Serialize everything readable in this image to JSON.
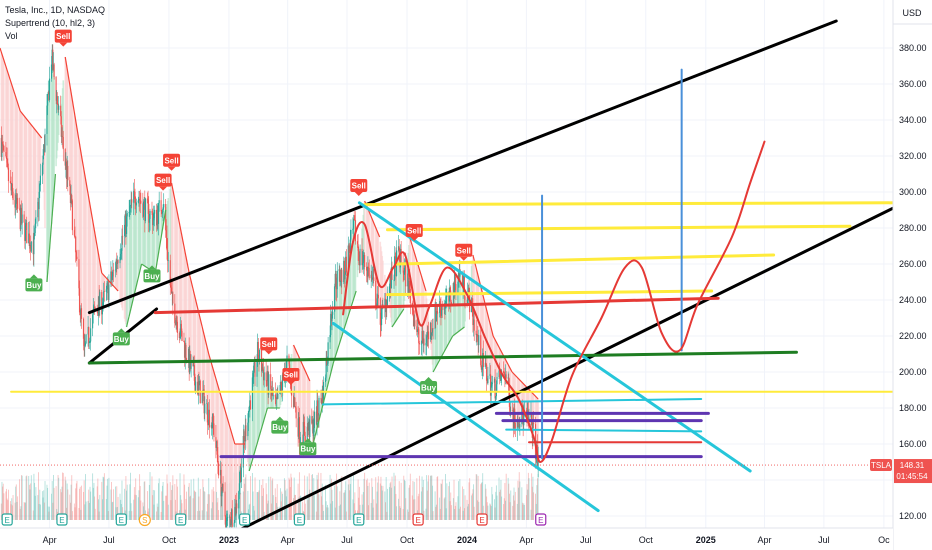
{
  "legend": {
    "symbol": "Tesla, Inc., 1D, NASDAQ",
    "indicator": "Supertrend (10, hl2, 3)",
    "volume": "Vol"
  },
  "chart_data": {
    "type": "candlestick",
    "currency": "USD",
    "ylim": [
      110,
      395
    ],
    "xlim": [
      "2022-01-15",
      "2025-10-15"
    ],
    "y_ticks": [
      120,
      140,
      160,
      180,
      200,
      220,
      240,
      260,
      280,
      300,
      320,
      340,
      360,
      380
    ],
    "x_ticks": [
      {
        "date": "2022-04-01",
        "label": "Apr"
      },
      {
        "date": "2022-07-01",
        "label": "Jul"
      },
      {
        "date": "2022-10-01",
        "label": "Oct"
      },
      {
        "date": "2023-01-01",
        "label": "2023",
        "year": true
      },
      {
        "date": "2023-04-01",
        "label": "Apr"
      },
      {
        "date": "2023-07-01",
        "label": "Jul"
      },
      {
        "date": "2023-10-01",
        "label": "Oct"
      },
      {
        "date": "2024-01-01",
        "label": "2024",
        "year": true
      },
      {
        "date": "2024-04-01",
        "label": "Apr"
      },
      {
        "date": "2024-07-01",
        "label": "Jul"
      },
      {
        "date": "2024-10-01",
        "label": "Oct"
      },
      {
        "date": "2025-01-01",
        "label": "2025",
        "year": true
      },
      {
        "date": "2025-04-01",
        "label": "Apr"
      },
      {
        "date": "2025-07-01",
        "label": "Jul"
      },
      {
        "date": "2025-10-01",
        "label": "Oc"
      }
    ],
    "last_price": {
      "symbol": "TSLA",
      "value": "148.31",
      "countdown": "01:45:54",
      "y": 148.31
    },
    "approx_close": [
      [
        "2022-01-15",
        330
      ],
      [
        "2022-02-01",
        300
      ],
      [
        "2022-02-20",
        280
      ],
      [
        "2022-03-08",
        270
      ],
      [
        "2022-03-25",
        330
      ],
      [
        "2022-04-04",
        375
      ],
      [
        "2022-04-20",
        330
      ],
      [
        "2022-05-05",
        290
      ],
      [
        "2022-05-24",
        210
      ],
      [
        "2022-06-10",
        235
      ],
      [
        "2022-06-24",
        240
      ],
      [
        "2022-07-08",
        255
      ],
      [
        "2022-07-25",
        280
      ],
      [
        "2022-08-12",
        300
      ],
      [
        "2022-08-26",
        290
      ],
      [
        "2022-09-10",
        285
      ],
      [
        "2022-09-22",
        295
      ],
      [
        "2022-10-05",
        240
      ],
      [
        "2022-10-20",
        220
      ],
      [
        "2022-11-05",
        200
      ],
      [
        "2022-11-22",
        185
      ],
      [
        "2022-12-08",
        170
      ],
      [
        "2022-12-28",
        115
      ],
      [
        "2023-01-12",
        125
      ],
      [
        "2023-01-27",
        170
      ],
      [
        "2023-02-14",
        210
      ],
      [
        "2023-02-28",
        195
      ],
      [
        "2023-03-15",
        180
      ],
      [
        "2023-03-31",
        205
      ],
      [
        "2023-04-20",
        165
      ],
      [
        "2023-05-10",
        170
      ],
      [
        "2023-05-26",
        190
      ],
      [
        "2023-06-12",
        250
      ],
      [
        "2023-06-26",
        255
      ],
      [
        "2023-07-12",
        280
      ],
      [
        "2023-07-20",
        265
      ],
      [
        "2023-08-05",
        255
      ],
      [
        "2023-08-22",
        230
      ],
      [
        "2023-09-06",
        250
      ],
      [
        "2023-09-18",
        265
      ],
      [
        "2023-10-02",
        250
      ],
      [
        "2023-10-20",
        215
      ],
      [
        "2023-11-02",
        220
      ],
      [
        "2023-11-16",
        235
      ],
      [
        "2023-12-05",
        240
      ],
      [
        "2023-12-20",
        255
      ],
      [
        "2024-01-05",
        240
      ],
      [
        "2024-01-24",
        205
      ],
      [
        "2024-02-10",
        190
      ],
      [
        "2024-02-28",
        200
      ],
      [
        "2024-03-12",
        175
      ],
      [
        "2024-03-28",
        175
      ],
      [
        "2024-04-10",
        170
      ],
      [
        "2024-04-19",
        148
      ]
    ],
    "supertrend": [
      {
        "date": "2022-01-15",
        "value": 380,
        "trend": "down"
      },
      {
        "date": "2022-02-15",
        "value": 345,
        "trend": "down"
      },
      {
        "date": "2022-03-20",
        "value": 330,
        "trend": "down"
      },
      {
        "date": "2022-03-28",
        "value": 250,
        "trend": "up"
      },
      {
        "date": "2022-04-10",
        "value": 310,
        "trend": "up"
      },
      {
        "date": "2022-04-25",
        "value": 375,
        "trend": "down"
      },
      {
        "date": "2022-05-20",
        "value": 320,
        "trend": "down"
      },
      {
        "date": "2022-06-20",
        "value": 255,
        "trend": "down"
      },
      {
        "date": "2022-07-15",
        "value": 245,
        "trend": "down"
      },
      {
        "date": "2022-07-28",
        "value": 225,
        "trend": "up"
      },
      {
        "date": "2022-08-20",
        "value": 260,
        "trend": "up"
      },
      {
        "date": "2022-09-10",
        "value": 255,
        "trend": "up"
      },
      {
        "date": "2022-09-26",
        "value": 290,
        "trend": "up"
      },
      {
        "date": "2022-10-05",
        "value": 305,
        "trend": "down"
      },
      {
        "date": "2022-11-01",
        "value": 255,
        "trend": "down"
      },
      {
        "date": "2022-12-01",
        "value": 210,
        "trend": "down"
      },
      {
        "date": "2023-01-10",
        "value": 160,
        "trend": "down"
      },
      {
        "date": "2023-01-26",
        "value": 160,
        "trend": "down"
      },
      {
        "date": "2023-02-01",
        "value": 145,
        "trend": "up"
      },
      {
        "date": "2023-03-01",
        "value": 180,
        "trend": "up"
      },
      {
        "date": "2023-03-20",
        "value": 180,
        "trend": "up"
      },
      {
        "date": "2023-04-10",
        "value": 215,
        "trend": "down"
      },
      {
        "date": "2023-05-05",
        "value": 195,
        "trend": "down"
      },
      {
        "date": "2023-05-10",
        "value": 160,
        "trend": "up"
      },
      {
        "date": "2023-06-10",
        "value": 205,
        "trend": "up"
      },
      {
        "date": "2023-07-15",
        "value": 245,
        "trend": "up"
      },
      {
        "date": "2023-07-28",
        "value": 295,
        "trend": "down"
      },
      {
        "date": "2023-08-20",
        "value": 275,
        "trend": "down"
      },
      {
        "date": "2023-09-08",
        "value": 225,
        "trend": "up"
      },
      {
        "date": "2023-09-26",
        "value": 235,
        "trend": "up"
      },
      {
        "date": "2023-10-05",
        "value": 275,
        "trend": "down"
      },
      {
        "date": "2023-10-30",
        "value": 245,
        "trend": "down"
      },
      {
        "date": "2023-11-10",
        "value": 200,
        "trend": "up"
      },
      {
        "date": "2023-12-10",
        "value": 220,
        "trend": "up"
      },
      {
        "date": "2023-12-28",
        "value": 225,
        "trend": "up"
      },
      {
        "date": "2024-01-10",
        "value": 265,
        "trend": "down"
      },
      {
        "date": "2024-02-10",
        "value": 220,
        "trend": "down"
      },
      {
        "date": "2024-03-10",
        "value": 200,
        "trend": "down"
      },
      {
        "date": "2024-04-19",
        "value": 185,
        "trend": "down"
      }
    ],
    "signals": [
      {
        "type": "Sell",
        "date": "2022-04-22",
        "y": 383
      },
      {
        "type": "Buy",
        "date": "2022-03-08",
        "y": 252
      },
      {
        "type": "Buy",
        "date": "2022-07-20",
        "y": 222
      },
      {
        "type": "Sell",
        "date": "2022-09-22",
        "y": 303
      },
      {
        "type": "Sell",
        "date": "2022-10-05",
        "y": 314
      },
      {
        "type": "Buy",
        "date": "2022-09-05",
        "y": 257
      },
      {
        "type": "Sell",
        "date": "2023-03-03",
        "y": 212
      },
      {
        "type": "Sell",
        "date": "2023-04-06",
        "y": 195
      },
      {
        "type": "Buy",
        "date": "2023-03-20",
        "y": 173
      },
      {
        "type": "Buy",
        "date": "2023-05-02",
        "y": 161
      },
      {
        "type": "Sell",
        "date": "2023-07-19",
        "y": 300
      },
      {
        "type": "Sell",
        "date": "2023-10-12",
        "y": 275
      },
      {
        "type": "Sell",
        "date": "2023-12-27",
        "y": 264
      },
      {
        "type": "Buy",
        "date": "2023-11-03",
        "y": 195
      }
    ],
    "earnings_markers": [
      "2022-01-26",
      "2022-04-20",
      "2022-07-20",
      "2022-10-19",
      "2023-01-25",
      "2023-04-19",
      "2023-07-19",
      "2023-10-18",
      "2024-01-24",
      "2024-04-23"
    ],
    "dividend_marker": {
      "date": "2022-08-25",
      "label": "S"
    },
    "drawings": [
      {
        "name": "upper-channel-line",
        "color": "#000000",
        "width": 3,
        "points": [
          [
            "2022-06-01",
            233
          ],
          [
            "2025-07-20",
            395
          ]
        ]
      },
      {
        "name": "lower-channel-line",
        "color": "#000000",
        "width": 3,
        "points": [
          [
            "2023-01-10",
            111
          ],
          [
            "2025-10-15",
            291
          ]
        ]
      },
      {
        "name": "base-trendline",
        "color": "#000000",
        "width": 3,
        "points": [
          [
            "2022-06-01",
            205
          ],
          [
            "2022-09-12",
            235
          ]
        ]
      },
      {
        "name": "green-support-line",
        "color": "#1e7d22",
        "width": 3,
        "points": [
          [
            "2022-06-01",
            205
          ],
          [
            "2025-05-20",
            211
          ]
        ]
      },
      {
        "name": "red-resistance-line",
        "color": "#e53935",
        "width": 3,
        "points": [
          [
            "2022-09-10",
            233
          ],
          [
            "2025-01-20",
            241
          ]
        ]
      },
      {
        "name": "yellow-line-1",
        "color": "#ffeb3b",
        "width": 2,
        "points": [
          [
            "2022-02-01",
            189
          ],
          [
            "2025-10-15",
            189
          ]
        ]
      },
      {
        "name": "yellow-line-2",
        "color": "#ffeb3b",
        "width": 3,
        "points": [
          [
            "2023-07-28",
            293
          ],
          [
            "2025-10-15",
            294
          ]
        ]
      },
      {
        "name": "yellow-line-3",
        "color": "#ffeb3b",
        "width": 3,
        "points": [
          [
            "2023-09-01",
            279
          ],
          [
            "2025-08-10",
            281
          ]
        ]
      },
      {
        "name": "yellow-line-4",
        "color": "#ffeb3b",
        "width": 3,
        "points": [
          [
            "2023-09-15",
            260
          ],
          [
            "2025-04-15",
            265
          ]
        ]
      },
      {
        "name": "yellow-line-5",
        "color": "#ffeb3b",
        "width": 3,
        "points": [
          [
            "2023-09-01",
            243
          ],
          [
            "2025-01-10",
            245
          ]
        ]
      },
      {
        "name": "cyan-channel-upper",
        "color": "#26c6da",
        "width": 3,
        "points": [
          [
            "2023-07-20",
            294
          ],
          [
            "2025-03-10",
            145
          ]
        ]
      },
      {
        "name": "cyan-channel-lower",
        "color": "#26c6da",
        "width": 3,
        "points": [
          [
            "2023-06-10",
            227
          ],
          [
            "2024-07-20",
            123
          ]
        ]
      },
      {
        "name": "cyan-line-1",
        "color": "#26c6da",
        "width": 2,
        "points": [
          [
            "2023-05-25",
            182
          ],
          [
            "2024-12-25",
            185
          ]
        ]
      },
      {
        "name": "cyan-line-2",
        "color": "#26c6da",
        "width": 2,
        "points": [
          [
            "2024-03-01",
            168
          ],
          [
            "2024-12-25",
            167
          ]
        ]
      },
      {
        "name": "purple-line-1",
        "color": "#5e35b1",
        "width": 3,
        "points": [
          [
            "2022-12-20",
            153
          ],
          [
            "2024-12-25",
            153
          ]
        ]
      },
      {
        "name": "purple-line-2",
        "color": "#5e35b1",
        "width": 3,
        "points": [
          [
            "2024-02-15",
            177
          ],
          [
            "2025-01-05",
            177
          ]
        ]
      },
      {
        "name": "purple-line-3",
        "color": "#5e35b1",
        "width": 3,
        "points": [
          [
            "2024-02-25",
            173
          ],
          [
            "2024-12-25",
            173
          ]
        ]
      },
      {
        "name": "red-line-short",
        "color": "#e53935",
        "width": 2,
        "points": [
          [
            "2024-04-05",
            161
          ],
          [
            "2024-12-25",
            161
          ]
        ]
      },
      {
        "name": "blue-vertical-1",
        "color": "#4a90d9",
        "width": 2,
        "points": [
          [
            "2024-04-25",
            152
          ],
          [
            "2024-04-25",
            298
          ]
        ]
      },
      {
        "name": "blue-vertical-2",
        "color": "#4a90d9",
        "width": 2,
        "points": [
          [
            "2024-11-25",
            212
          ],
          [
            "2024-11-25",
            368
          ]
        ]
      },
      {
        "name": "red-projection-curve",
        "color": "#e53935",
        "width": 2,
        "smooth": true,
        "points": [
          [
            "2023-06-25",
            232
          ],
          [
            "2023-07-10",
            272
          ],
          [
            "2023-07-28",
            282
          ],
          [
            "2023-08-20",
            248
          ],
          [
            "2023-09-10",
            258
          ],
          [
            "2023-09-28",
            265
          ],
          [
            "2023-10-20",
            227
          ],
          [
            "2023-11-05",
            237
          ],
          [
            "2023-12-01",
            258
          ],
          [
            "2024-01-01",
            243
          ],
          [
            "2024-01-30",
            218
          ],
          [
            "2024-02-25",
            198
          ],
          [
            "2024-03-20",
            185
          ],
          [
            "2024-04-12",
            164
          ],
          [
            "2024-04-22",
            150
          ],
          [
            "2024-05-10",
            162
          ],
          [
            "2024-06-10",
            198
          ],
          [
            "2024-07-25",
            230
          ],
          [
            "2024-08-30",
            258
          ],
          [
            "2024-09-25",
            258
          ],
          [
            "2024-10-25",
            222
          ],
          [
            "2024-11-22",
            212
          ],
          [
            "2024-12-20",
            238
          ],
          [
            "2025-02-10",
            275
          ],
          [
            "2025-03-10",
            305
          ],
          [
            "2025-04-01",
            328
          ]
        ]
      }
    ]
  }
}
